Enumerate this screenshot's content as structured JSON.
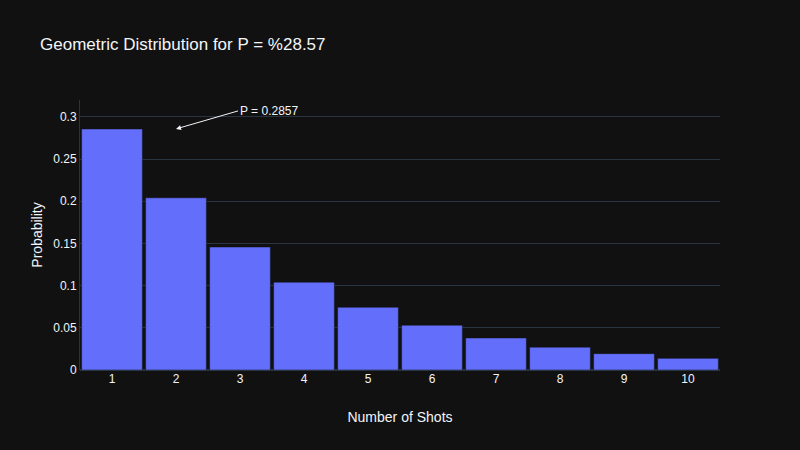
{
  "chart_data": {
    "type": "bar",
    "title": "Geometric Distribution for P = %28.57",
    "x_label": "Number of Shots",
    "y_label": "Probability",
    "categories": [
      "1",
      "2",
      "3",
      "4",
      "5",
      "6",
      "7",
      "8",
      "9",
      "10"
    ],
    "values": [
      0.2857,
      0.2041,
      0.1458,
      0.1041,
      0.0744,
      0.0531,
      0.038,
      0.0271,
      0.0194,
      0.0138
    ],
    "color": "#636efa",
    "ylim": [
      0,
      0.32
    ],
    "yticks": [
      0,
      0.05,
      0.1,
      0.15,
      0.2,
      0.25,
      0.3
    ],
    "grid": true,
    "annotations": [
      {
        "text": "P = 0.2857",
        "x": "1",
        "y": 0.2857
      }
    ]
  }
}
